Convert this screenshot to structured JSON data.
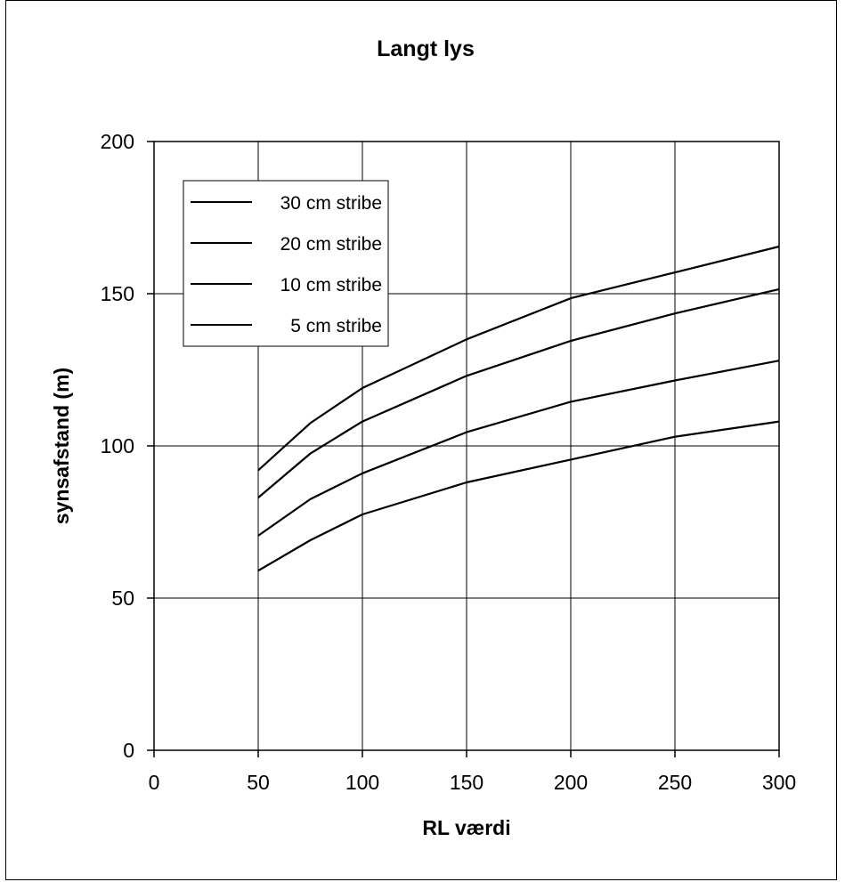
{
  "chart_data": {
    "type": "line",
    "title": "Langt lys",
    "xlabel": "RL værdi",
    "ylabel": "synsafstand (m)",
    "xlim": [
      0,
      300
    ],
    "ylim": [
      0,
      200
    ],
    "xticks": [
      0,
      50,
      100,
      150,
      200,
      250,
      300
    ],
    "yticks": [
      0,
      50,
      100,
      150,
      200
    ],
    "grid": true,
    "legend_position": "top-left",
    "line_color": "#000000",
    "x": [
      50,
      75,
      100,
      150,
      200,
      250,
      300
    ],
    "series": [
      {
        "name": "30 cm stribe",
        "values": [
          92,
          107.5,
          119,
          135,
          148.5,
          157,
          165.5
        ]
      },
      {
        "name": "20 cm stribe",
        "values": [
          83,
          97.5,
          108,
          123,
          134.5,
          143.5,
          151.5
        ]
      },
      {
        "name": "10 cm stribe",
        "values": [
          70.5,
          82.5,
          91,
          104.5,
          114.5,
          121.5,
          128
        ]
      },
      {
        "name": "5 cm stribe",
        "values": [
          59,
          69,
          77.5,
          88,
          95.5,
          103,
          108
        ]
      }
    ]
  }
}
